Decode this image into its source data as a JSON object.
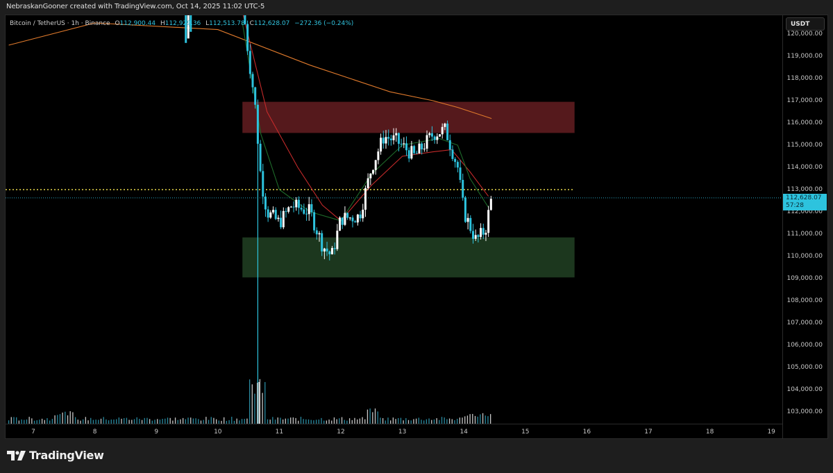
{
  "caption": "NebraskanGooner created with TradingView.com, Oct 14, 2025 11:02 UTC-5",
  "legend": {
    "symbol": "Bitcoin / TetherUS · 1h · Binance",
    "open_label": "O",
    "open": "112,900.44",
    "high_label": "H",
    "high": "112,929.36",
    "low_label": "L",
    "low": "112,513.78",
    "close_label": "C",
    "close": "112,628.07",
    "change": "−272.36 (−0.24%)"
  },
  "currency": "USDT",
  "price_tag": {
    "price": "112,628.07",
    "countdown": "57:28"
  },
  "price_axis": [
    "120,000.00",
    "119,000.00",
    "118,000.00",
    "117,000.00",
    "116,000.00",
    "115,000.00",
    "114,000.00",
    "113,000.00",
    "112,000.00",
    "111,000.00",
    "110,000.00",
    "109,000.00",
    "108,000.00",
    "107,000.00",
    "106,000.00",
    "105,000.00",
    "104,000.00",
    "103,000.00"
  ],
  "time_axis": [
    "7",
    "8",
    "9",
    "10",
    "11",
    "12",
    "13",
    "14",
    "15",
    "16",
    "17",
    "18",
    "19"
  ],
  "brand": "TradingView",
  "colors": {
    "up": "#ffffff",
    "down": "#2dc3de",
    "supply_zone": "#5a1a1e",
    "demand_zone": "#1d3a20",
    "ma_long": "#e07a2c",
    "ma_mid": "#c42a2a",
    "ma_short": "#1e6a2a",
    "level_line": "#e8d84a",
    "last_price_line": "#2aa6c2"
  },
  "chart_data": {
    "type": "candlestick",
    "title": "Bitcoin / TetherUS · 1h · Binance",
    "xlabel": "",
    "ylabel": "USDT",
    "ylim": [
      102600,
      120100
    ],
    "x_ticks": [
      "7",
      "8",
      "9",
      "10",
      "11",
      "12",
      "13",
      "14",
      "15",
      "16",
      "17",
      "18",
      "19"
    ],
    "y_ticks": [
      103000,
      104000,
      105000,
      106000,
      107000,
      108000,
      109000,
      110000,
      111000,
      112000,
      113000,
      114000,
      115000,
      116000,
      117000,
      118000,
      119000,
      120000
    ],
    "ohlc_last": {
      "open": 112900.44,
      "high": 112929.36,
      "low": 112513.78,
      "close": 112628.07,
      "change": -272.36,
      "change_pct": -0.24
    },
    "zones": [
      {
        "name": "supply",
        "from": 115550,
        "to": 116950
      },
      {
        "name": "demand",
        "from": 109050,
        "to": 110850
      }
    ],
    "horizontal_lines": [
      {
        "name": "key-level",
        "price": 113000,
        "style": "dotted",
        "color": "#e8d84a"
      },
      {
        "name": "last-price",
        "price": 112628.07,
        "style": "dotted",
        "color": "#2aa6c2"
      }
    ],
    "price_path": [
      {
        "day": 10.4,
        "price": 121500
      },
      {
        "day": 10.5,
        "price": 119000
      },
      {
        "day": 10.6,
        "price": 117000
      },
      {
        "day": 10.7,
        "price": 113500
      },
      {
        "day": 10.8,
        "price": 112000
      },
      {
        "day": 11.0,
        "price": 111500
      },
      {
        "day": 11.2,
        "price": 112300
      },
      {
        "day": 11.5,
        "price": 112000
      },
      {
        "day": 11.7,
        "price": 110500
      },
      {
        "day": 11.85,
        "price": 110000
      },
      {
        "day": 12.0,
        "price": 111700
      },
      {
        "day": 12.3,
        "price": 111800
      },
      {
        "day": 12.5,
        "price": 114000
      },
      {
        "day": 12.7,
        "price": 115400
      },
      {
        "day": 12.9,
        "price": 115200
      },
      {
        "day": 13.2,
        "price": 114500
      },
      {
        "day": 13.5,
        "price": 115500
      },
      {
        "day": 13.7,
        "price": 115700
      },
      {
        "day": 13.9,
        "price": 114000
      },
      {
        "day": 14.0,
        "price": 112000
      },
      {
        "day": 14.2,
        "price": 110700
      },
      {
        "day": 14.35,
        "price": 111200
      },
      {
        "day": 14.45,
        "price": 112628
      }
    ],
    "moving_averages": [
      {
        "name": "MA long (orange)",
        "points": [
          [
            6.6,
            119500
          ],
          [
            8.0,
            120500
          ],
          [
            10.0,
            120200
          ],
          [
            11.5,
            118600
          ],
          [
            12.8,
            117400
          ],
          [
            13.5,
            117000
          ],
          [
            13.9,
            116700
          ],
          [
            14.45,
            116200
          ]
        ]
      },
      {
        "name": "MA mid (red)",
        "points": [
          [
            10.4,
            121000
          ],
          [
            10.8,
            116500
          ],
          [
            11.3,
            114000
          ],
          [
            11.7,
            112300
          ],
          [
            12.0,
            111600
          ],
          [
            12.5,
            113200
          ],
          [
            13.0,
            114500
          ],
          [
            13.5,
            114700
          ],
          [
            13.8,
            114800
          ],
          [
            14.1,
            113800
          ],
          [
            14.4,
            112700
          ]
        ]
      },
      {
        "name": "MA short (green)",
        "points": [
          [
            10.4,
            120500
          ],
          [
            10.7,
            115500
          ],
          [
            11.0,
            113000
          ],
          [
            11.5,
            112000
          ],
          [
            12.0,
            111600
          ],
          [
            12.5,
            113700
          ],
          [
            13.0,
            115000
          ],
          [
            13.6,
            115300
          ],
          [
            13.9,
            115000
          ],
          [
            14.1,
            113500
          ],
          [
            14.4,
            112200
          ]
        ]
      }
    ],
    "volume": {
      "note": "hourly volume bars along bottom, large spike at ~Oct 10 evening",
      "relative_peak_day": 10.65
    }
  }
}
